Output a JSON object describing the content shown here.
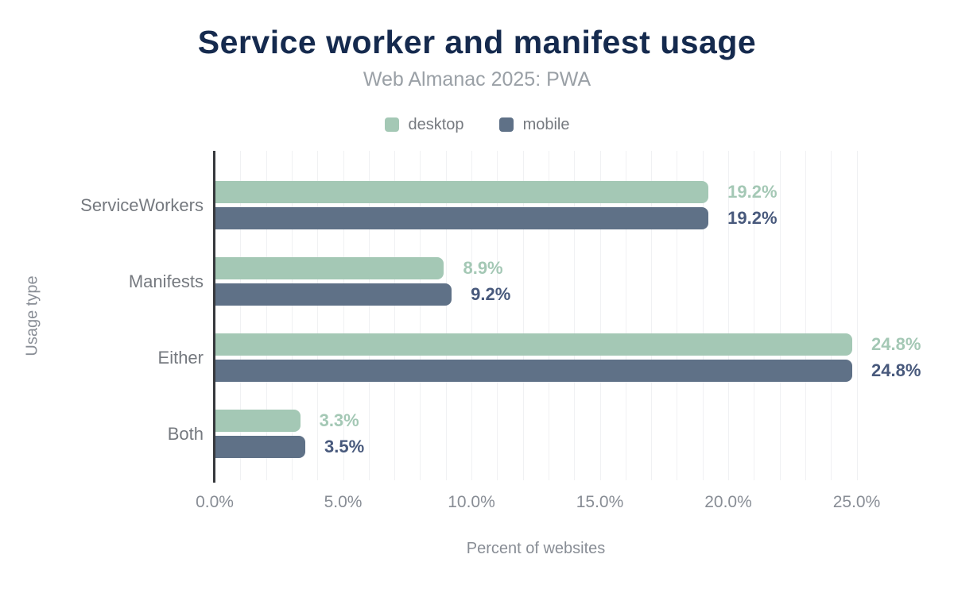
{
  "header": {
    "title": "Service worker and manifest usage",
    "subtitle": "Web Almanac 2025: PWA"
  },
  "legend": {
    "items": [
      {
        "label": "desktop",
        "color": "#a4c8b5"
      },
      {
        "label": "mobile",
        "color": "#5f7187"
      }
    ]
  },
  "colors": {
    "title": "#152a4e",
    "subtitle": "#9aa0a6",
    "axis_text": "#888d95",
    "category_text": "#75797f",
    "axis_line": "#37393d",
    "gridline": "#f0f1f3",
    "desktop": "#a4c8b5",
    "mobile_bar": "#5f7187",
    "mobile_label": "#48597c"
  },
  "chart_data": {
    "type": "bar",
    "orientation": "horizontal",
    "title": "Service worker and manifest usage",
    "subtitle": "Web Almanac 2025: PWA",
    "categories": [
      "ServiceWorkers",
      "Manifests",
      "Either",
      "Both"
    ],
    "series": [
      {
        "name": "desktop",
        "color": "#a4c8b5",
        "label_color": "#a4c8b5",
        "values": [
          19.2,
          8.9,
          24.8,
          3.3
        ]
      },
      {
        "name": "mobile",
        "color": "#5f7187",
        "label_color": "#48597c",
        "values": [
          19.2,
          9.2,
          24.8,
          3.5
        ]
      }
    ],
    "value_labels": {
      "desktop": [
        "19.2%",
        "8.9%",
        "24.8%",
        "3.3%"
      ],
      "mobile": [
        "19.2%",
        "9.2%",
        "24.8%",
        "3.5%"
      ]
    },
    "xlabel": "Percent of websites",
    "ylabel": "Usage type",
    "x_ticks": [
      "0.0%",
      "5.0%",
      "10.0%",
      "15.0%",
      "20.0%",
      "25.0%"
    ],
    "x_tick_values": [
      0,
      5,
      10,
      15,
      20,
      25
    ],
    "xlim": [
      0,
      25.4
    ],
    "grid": "vertical, minor every 1%",
    "legend_position": "top",
    "value_suffix": "%"
  }
}
